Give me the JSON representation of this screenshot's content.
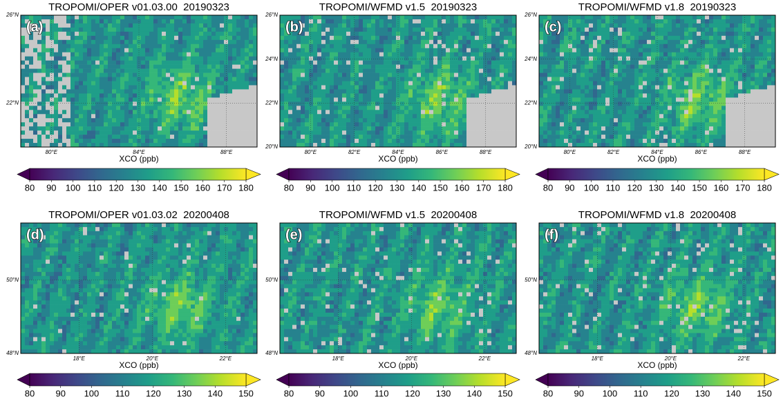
{
  "panels": [
    {
      "label": "(a)",
      "title": "TROPOMI/OPER v01.03.00  20190323",
      "lat_ticks": [
        {
          "value": 26,
          "label": "26°N"
        },
        {
          "value": 22,
          "label": "22°N"
        }
      ],
      "lon_ticks": [
        {
          "value": 80,
          "label": "80°E"
        },
        {
          "value": 84,
          "label": "84°E"
        },
        {
          "value": 88,
          "label": "88°E"
        }
      ],
      "xlim": [
        78.6,
        89.4
      ],
      "ylim": [
        20,
        26
      ],
      "colorbar": {
        "label": "XCO (ppb)",
        "range": [
          80,
          180
        ],
        "ticks": [
          80,
          90,
          100,
          110,
          120,
          130,
          140,
          150,
          160,
          170,
          180
        ]
      }
    },
    {
      "label": "(b)",
      "title": "TROPOMI/WFMD v1.5  20190323",
      "lat_ticks": [
        {
          "value": 26,
          "label": "26°N"
        },
        {
          "value": 24,
          "label": "24°N"
        },
        {
          "value": 22,
          "label": "22°N"
        },
        {
          "value": 20,
          "label": "20°N"
        }
      ],
      "lon_ticks": [
        {
          "value": 80,
          "label": "80°E"
        },
        {
          "value": 82,
          "label": "82°E"
        },
        {
          "value": 84,
          "label": "84°E"
        },
        {
          "value": 86,
          "label": "86°E"
        },
        {
          "value": 88,
          "label": "88°E"
        }
      ],
      "xlim": [
        78.6,
        89.4
      ],
      "ylim": [
        20,
        26
      ],
      "colorbar": {
        "label": "XCO (ppb)",
        "range": [
          80,
          180
        ],
        "ticks": [
          80,
          90,
          100,
          110,
          120,
          130,
          140,
          150,
          160,
          170,
          180
        ]
      }
    },
    {
      "label": "(c)",
      "title": "TROPOMI/WFMD v1.8  20190323",
      "lat_ticks": [
        {
          "value": 26,
          "label": "26°N"
        },
        {
          "value": 24,
          "label": "24°N"
        },
        {
          "value": 22,
          "label": "22°N"
        },
        {
          "value": 20,
          "label": "20°N"
        }
      ],
      "lon_ticks": [
        {
          "value": 80,
          "label": "80°E"
        },
        {
          "value": 82,
          "label": "82°E"
        },
        {
          "value": 84,
          "label": "84°E"
        },
        {
          "value": 86,
          "label": "86°E"
        },
        {
          "value": 88,
          "label": "88°E"
        }
      ],
      "xlim": [
        78.6,
        89.4
      ],
      "ylim": [
        20,
        26
      ],
      "colorbar": {
        "label": "XCO (ppb)",
        "range": [
          80,
          180
        ],
        "ticks": [
          80,
          90,
          100,
          110,
          120,
          130,
          140,
          150,
          160,
          170,
          180
        ]
      }
    },
    {
      "label": "(d)",
      "title": "TROPOMI/OPER v01.03.02  20200408",
      "lat_ticks": [
        {
          "value": 50,
          "label": "50°N"
        },
        {
          "value": 48,
          "label": "48°N"
        }
      ],
      "lon_ticks": [
        {
          "value": 18,
          "label": "18°E"
        },
        {
          "value": 20,
          "label": "20°E"
        },
        {
          "value": 22,
          "label": "22°E"
        }
      ],
      "xlim": [
        16.41,
        22.86
      ],
      "ylim": [
        48,
        51.56
      ],
      "colorbar": {
        "label": "XCO (ppb)",
        "range": [
          80,
          150
        ],
        "ticks": [
          80,
          90,
          100,
          110,
          120,
          130,
          140,
          150
        ]
      }
    },
    {
      "label": "(e)",
      "title": "TROPOMI/WFMD v1.5  20200408",
      "lat_ticks": [
        {
          "value": 50,
          "label": "50°N"
        },
        {
          "value": 48,
          "label": "48°N"
        }
      ],
      "lon_ticks": [
        {
          "value": 18,
          "label": "18°E"
        },
        {
          "value": 20,
          "label": "20°E"
        },
        {
          "value": 22,
          "label": "22°E"
        }
      ],
      "xlim": [
        16.41,
        22.86
      ],
      "ylim": [
        48,
        51.56
      ],
      "colorbar": {
        "label": "XCO (ppb)",
        "range": [
          80,
          150
        ],
        "ticks": [
          80,
          90,
          100,
          110,
          120,
          130,
          140,
          150
        ]
      }
    },
    {
      "label": "(f)",
      "title": "TROPOMI/WFMD v1.8  20200408",
      "lat_ticks": [
        {
          "value": 50,
          "label": "50°N"
        },
        {
          "value": 48,
          "label": "48°N"
        }
      ],
      "lon_ticks": [
        {
          "value": 18,
          "label": "18°E"
        },
        {
          "value": 20,
          "label": "20°E"
        },
        {
          "value": 22,
          "label": "22°E"
        }
      ],
      "xlim": [
        16.41,
        22.86
      ],
      "ylim": [
        48,
        51.56
      ],
      "colorbar": {
        "label": "XCO (ppb)",
        "range": [
          80,
          150
        ],
        "ticks": [
          80,
          90,
          100,
          110,
          120,
          130,
          140,
          150
        ]
      }
    }
  ]
}
